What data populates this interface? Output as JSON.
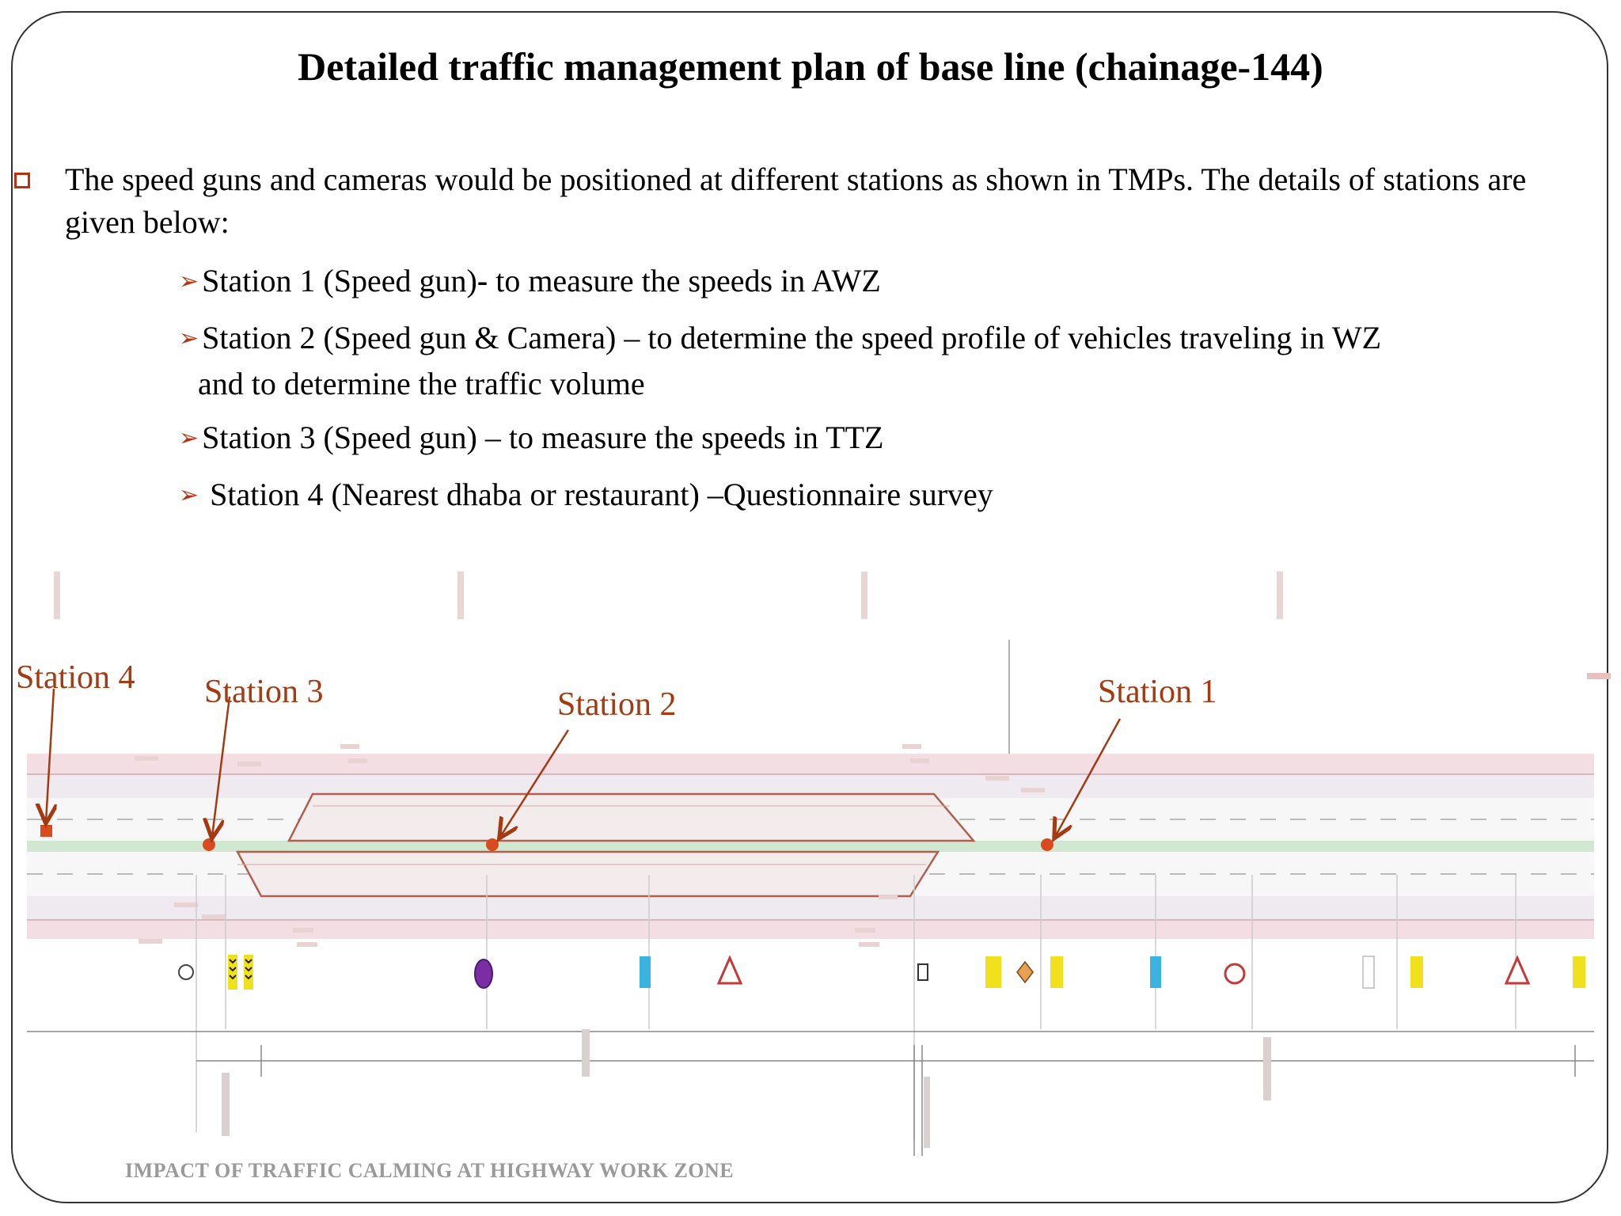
{
  "title": "Detailed traffic management plan of  base line (chainage-144)",
  "intro": "The speed guns and cameras would be positioned at different stations as shown in TMPs. The details of stations are given below:",
  "stations": [
    {
      "label": "Station 1 (Speed gun)",
      "bold_sep": "-",
      "desc": " to measure the speeds in AWZ",
      "desc2": ""
    },
    {
      "label": "Station 2 (Speed gun & Camera) – to determine the speed profile of vehicles traveling in WZ",
      "bold_sep": "",
      "desc": "",
      "desc2": "and to determine the traffic volume"
    },
    {
      "label": "Station 3 (Speed gun) – to measure the speeds in TTZ",
      "bold_sep": "",
      "desc": "",
      "desc2": ""
    },
    {
      "label": " Station 4 (Nearest dhaba or restaurant) –Questionnaire  survey",
      "bold_sep": "",
      "desc": "",
      "desc2": ""
    }
  ],
  "diagram_labels": {
    "station1": "Station 1",
    "station2": "Station 2",
    "station3": "Station 3",
    "station4": "Station 4"
  },
  "footer": "IMPACT OF TRAFFIC CALMING AT HIGHWAY WORK ZONE",
  "colors": {
    "accent": "#b83210",
    "station_marker": "#d94a1e",
    "footer": "#9a9a9a"
  }
}
